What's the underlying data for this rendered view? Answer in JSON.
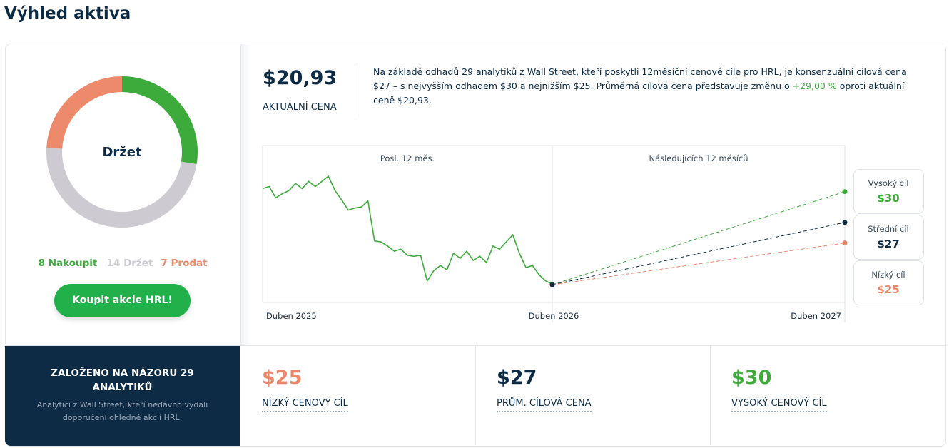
{
  "title": "Výhled aktiva",
  "chart_data": [
    {
      "type": "donut",
      "center_label": "Držet",
      "categories": [
        "Nakoupit",
        "Držet",
        "Prodat"
      ],
      "values": [
        8,
        14,
        7
      ],
      "value_labels": [
        "8 Nakoupit",
        "14 Držet",
        "7 Prodat"
      ],
      "colors": [
        "#3cab3b",
        "#cdcbd1",
        "#ec8a6b"
      ]
    },
    {
      "type": "line",
      "period_labels": [
        "Posl. 12 měs.",
        "Následujících 12 měsíců"
      ],
      "x_labels": [
        "Duben 2025",
        "Duben 2026",
        "Duben 2027"
      ],
      "color": "#3cab3b",
      "ylim": [
        19.2,
        34.5
      ],
      "history": [
        30.3,
        30.5,
        29.4,
        29.8,
        30.1,
        30.8,
        30.3,
        31.0,
        30.5,
        31.0,
        31.5,
        30.1,
        29.2,
        28.2,
        28.4,
        28.5,
        29.1,
        25.2,
        25.1,
        24.7,
        24.2,
        24.4,
        23.8,
        23.7,
        23.8,
        21.3,
        22.3,
        22.8,
        22.4,
        24.0,
        23.5,
        24.2,
        23.3,
        23.7,
        23.1,
        24.7,
        24.4,
        25.1,
        25.8,
        24.0,
        22.6,
        22.8,
        21.9,
        21.3,
        21.0
      ],
      "current": 20.93,
      "current_label": "$20,93",
      "targets": [
        {
          "name": "Vysoký cíl",
          "value": 30,
          "value_label": "$30",
          "color": "#3daa3a"
        },
        {
          "name": "Střední cíl",
          "value": 27,
          "value_label": "$27",
          "color": "#0d2b45"
        },
        {
          "name": "Nízký cíl",
          "value": 25,
          "value_label": "$25",
          "color": "#e9876a"
        }
      ]
    }
  ],
  "buy_button": "Koupit akcie HRL!",
  "price_label": "AKTUÁLNÍ CENA",
  "summary": {
    "before": "Na základě odhadů 29 analytiků z Wall Street, kteří poskytli 12měsíční cenové cíle pro HRL, je konsenzuální cílová cena $27 – s nejvyšším odhadem $30 a nejnižším $25. Průměrná cílová cena představuje změnu o ",
    "change": "+29,00 %",
    "after": " oproti aktuální ceně $20,93."
  },
  "basis": {
    "title": "ZALOŽENO NA NÁZORU 29 ANALYTIKŮ",
    "text": "Analytici z Wall Street, kteří nedávno vydali doporučení ohledně akcií HRL."
  },
  "cards": [
    {
      "value": "$25",
      "label": "NÍZKÝ CENOVÝ CÍL"
    },
    {
      "value": "$27",
      "label": "PRŮM. CÍLOVÁ CENA"
    },
    {
      "value": "$30",
      "label": "VYSOKÝ CENOVÝ CÍL"
    }
  ]
}
